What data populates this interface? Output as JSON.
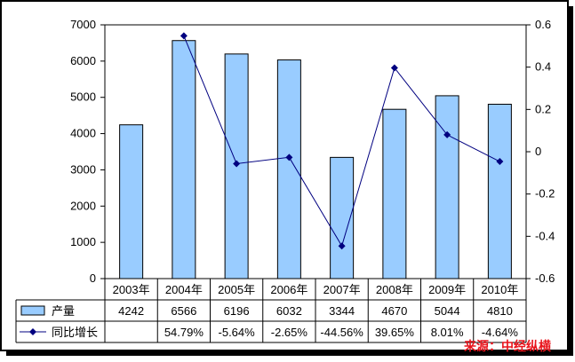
{
  "chart_data": {
    "type": "bar+line",
    "categories": [
      "2003年",
      "2004年",
      "2005年",
      "2006年",
      "2007年",
      "2008年",
      "2009年",
      "2010年"
    ],
    "series": [
      {
        "name": "产量",
        "type": "bar",
        "axis": "left",
        "color": "#99ccff",
        "values": [
          4242,
          6566,
          6196,
          6032,
          3344,
          4670,
          5044,
          4810
        ],
        "labels": [
          "4242",
          "6566",
          "6196",
          "6032",
          "3344",
          "4670",
          "5044",
          "4810"
        ]
      },
      {
        "name": "同比增长",
        "type": "line",
        "axis": "right",
        "color": "#000080",
        "values": [
          null,
          0.5479,
          -0.0564,
          -0.0265,
          -0.4456,
          0.3965,
          0.0801,
          -0.0464
        ],
        "labels": [
          "",
          "54.79%",
          "-5.64%",
          "-2.65%",
          "-44.56%",
          "39.65%",
          "8.01%",
          "-4.64%"
        ]
      }
    ],
    "y_left": {
      "min": 0,
      "max": 7000,
      "step": 1000,
      "ticks": [
        "0",
        "1000",
        "2000",
        "3000",
        "4000",
        "5000",
        "6000",
        "7000"
      ]
    },
    "y_right": {
      "min": -0.6,
      "max": 0.6,
      "step": 0.2,
      "ticks": [
        "-0.6",
        "-0.4",
        "-0.2",
        "0",
        "0.2",
        "0.4",
        "0.6"
      ]
    },
    "grid": false,
    "legend": "data-table",
    "frame_color": "#000000"
  },
  "source_note": "来源：中经纵横"
}
